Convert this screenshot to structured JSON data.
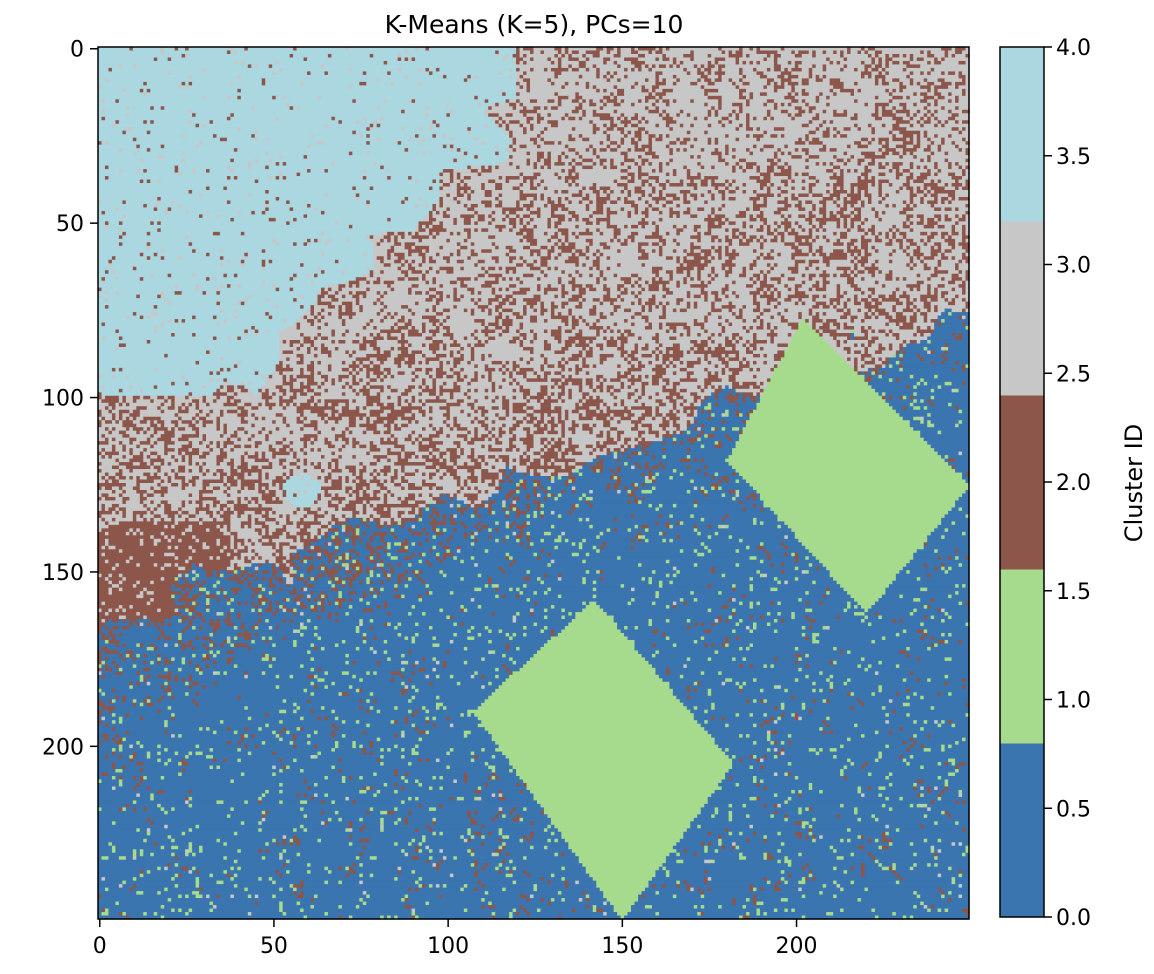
{
  "chart_data": {
    "type": "heatmap",
    "title": "K-Means (K=5), PCs=10",
    "xlabel": "",
    "ylabel": "",
    "grid": false,
    "image_shape": [
      250,
      250
    ],
    "xlim": [
      -0.5,
      249.5
    ],
    "ylim": [
      249.5,
      -0.5
    ],
    "x_ticks": [
      0,
      50,
      100,
      150,
      200
    ],
    "y_ticks": [
      0,
      50,
      100,
      150,
      200
    ],
    "x_tick_labels": [
      "0",
      "50",
      "100",
      "150",
      "200"
    ],
    "y_tick_labels": [
      "0",
      "50",
      "100",
      "150",
      "200"
    ],
    "clusters": [
      {
        "id": 0,
        "color": "#3b75af"
      },
      {
        "id": 1,
        "color": "#a6da8c"
      },
      {
        "id": 2,
        "color": "#8c564b"
      },
      {
        "id": 3,
        "color": "#c7c7c7"
      },
      {
        "id": 4,
        "color": "#aad7e0"
      }
    ],
    "regions": {
      "cluster4_light_blue": "top-left quadrant, roughly x 0–118, y 0–100, plus a small patch near x 55–62, y 122–132",
      "cluster3_gray_cluster2_brown_mix": "upper-right and middle band above a diagonal from (0,165) to (250,75)",
      "cluster0_blue_with_speckle": "lower half below the diagonal",
      "cluster1_green_rect_1": "rotated rectangle with corners ≈ (142,158), (182,205), (150,250), (107,190)",
      "cluster1_green_rect_2": "rotated rectangle with corners ≈ (202,77), (250,125), (220,162), (180,118)",
      "cluster2_brown_blob": "dense brown patch near x 5–38, y 135–175"
    },
    "colorbar": {
      "label": "Cluster ID",
      "range": [
        0.0,
        4.0
      ],
      "ticks": [
        0.0,
        0.5,
        1.0,
        1.5,
        2.0,
        2.5,
        3.0,
        3.5,
        4.0
      ],
      "tick_labels": [
        "0.0",
        "0.5",
        "1.0",
        "1.5",
        "2.0",
        "2.5",
        "3.0",
        "3.5",
        "4.0"
      ]
    }
  }
}
